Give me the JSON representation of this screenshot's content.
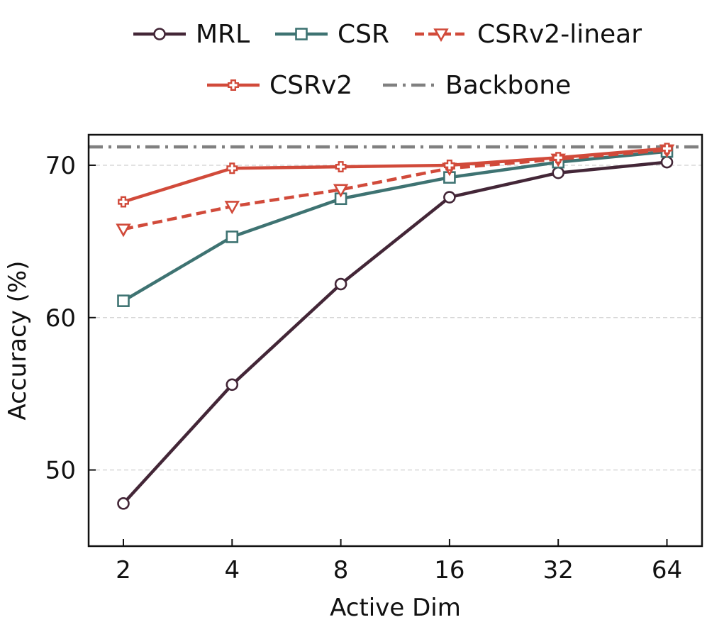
{
  "chart_data": {
    "type": "line",
    "title": "",
    "xlabel": "Active Dim",
    "ylabel": "Accuracy (%)",
    "x": [
      2,
      4,
      8,
      16,
      32,
      64
    ],
    "x_tick_labels": [
      "2",
      "4",
      "8",
      "16",
      "32",
      "64"
    ],
    "x_scale": "log2",
    "ylim": [
      45,
      72
    ],
    "y_ticks": [
      50,
      60,
      70
    ],
    "y_tick_labels": [
      "50",
      "60",
      "70"
    ],
    "grid": "horizontal dashed",
    "legend_position": "top, above plot, two rows",
    "series": [
      {
        "name": "MRL",
        "values": [
          47.8,
          55.6,
          62.2,
          67.9,
          69.5,
          70.2
        ],
        "color": "#432637",
        "marker": "circle",
        "line_style": "solid"
      },
      {
        "name": "CSR",
        "values": [
          61.1,
          65.3,
          67.8,
          69.2,
          70.2,
          70.9
        ],
        "color": "#3e7372",
        "marker": "square",
        "line_style": "solid"
      },
      {
        "name": "CSRv2-linear",
        "values": [
          65.8,
          67.3,
          68.4,
          69.8,
          70.4,
          71.0
        ],
        "color": "#d14a3a",
        "marker": "triangle-down",
        "line_style": "dashed"
      },
      {
        "name": "CSRv2",
        "values": [
          67.6,
          69.8,
          69.9,
          70.0,
          70.5,
          71.1
        ],
        "color": "#d14a3a",
        "marker": "plus",
        "line_style": "solid"
      }
    ],
    "reference_line": {
      "name": "Backbone",
      "value": 71.2,
      "color": "#808080",
      "line_style": "dash-dot"
    }
  }
}
